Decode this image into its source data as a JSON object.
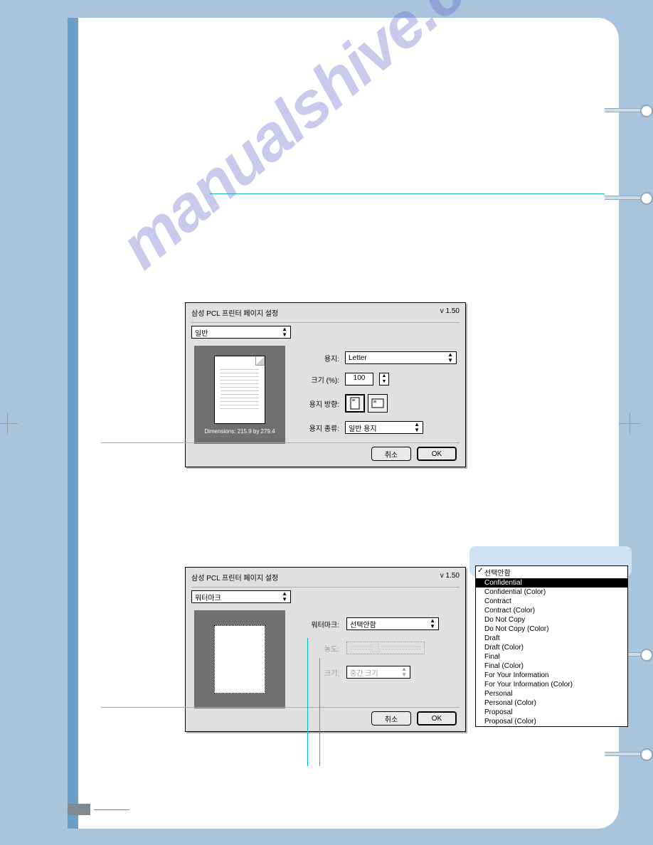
{
  "watermark_text": "manualshive.com",
  "dialog1": {
    "title": "삼성 PCL 프린터 페이지 설정",
    "version": "v 1.50",
    "tab": "일반",
    "preview_dim": "Dimensions: 215.9 by 279.4",
    "fields": {
      "paper_label": "용지:",
      "paper_value": "Letter",
      "scale_label": "크기 (%):",
      "scale_value": "100",
      "orient_label": "용지 방향:",
      "type_label": "용지 종류:",
      "type_value": "일반 용지"
    },
    "cancel": "취소",
    "ok": "OK"
  },
  "dialog2": {
    "title": "삼성 PCL 프린터 페이지 설정",
    "version": "v 1.50",
    "tab": "워터마크",
    "fields": {
      "wm_label": "워터마크:",
      "wm_value": "선택안함",
      "density_label": "농도:",
      "size_label": "크기:",
      "size_value": "중간 크기"
    },
    "cancel": "취소",
    "ok": "OK"
  },
  "dropdown": {
    "items": [
      "선택안함",
      "Confidential",
      "Confidential (Color)",
      "Contract",
      "Contract (Color)",
      "Do Not Copy",
      "Do Not Copy (Color)",
      "Draft",
      "Draft (Color)",
      "Final",
      "Final (Color)",
      "For Your Information",
      "For Your Information (Color)",
      "Personal",
      "Personal (Color)",
      "Proposal",
      "Proposal (Color)"
    ],
    "checked_index": 0,
    "selected_index": 1
  }
}
